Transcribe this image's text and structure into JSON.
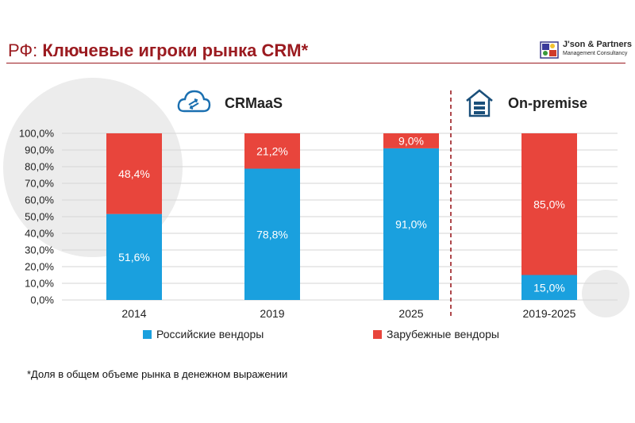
{
  "header": {
    "title_prefix": "РФ:",
    "title_main": "Ключевые игроки рынка CRM*",
    "logo_name": "J'son & Partners",
    "logo_sub": "Management Consultancy"
  },
  "segments": {
    "cloud_label": "CRMaaS",
    "onprem_label": "On-premise",
    "cloud_icon": "cloud-sync-icon",
    "onprem_icon": "server-house-icon"
  },
  "legend": {
    "russian": "Российские вендоры",
    "foreign": "Зарубежные вендоры"
  },
  "footnote": "*Доля в общем объеме рынка в денежном выражении",
  "colors": {
    "russian": "#1aa0de",
    "foreign": "#e8453c",
    "title": "#9b1b20",
    "divider": "#9b1b20"
  },
  "chart_data": {
    "type": "bar",
    "stacked": true,
    "categories": [
      "2014",
      "2019",
      "2025",
      "2019-2025"
    ],
    "series": [
      {
        "name": "Российские вендоры",
        "values": [
          51.6,
          78.8,
          91.0,
          15.0
        ],
        "labels": [
          "51,6%",
          "78,8%",
          "91,0%",
          "15,0%"
        ]
      },
      {
        "name": "Зарубежные вендоры",
        "values": [
          48.4,
          21.2,
          9.0,
          85.0
        ],
        "labels": [
          "48,4%",
          "21,2%",
          "9,0%",
          "85,0%"
        ]
      }
    ],
    "yticks": [
      "0,0%",
      "10,0%",
      "20,0%",
      "30,0%",
      "40,0%",
      "50,0%",
      "60,0%",
      "70,0%",
      "80,0%",
      "90,0%",
      "100,0%"
    ],
    "ylim": [
      0,
      100
    ],
    "grid": true,
    "legend_position": "bottom"
  }
}
